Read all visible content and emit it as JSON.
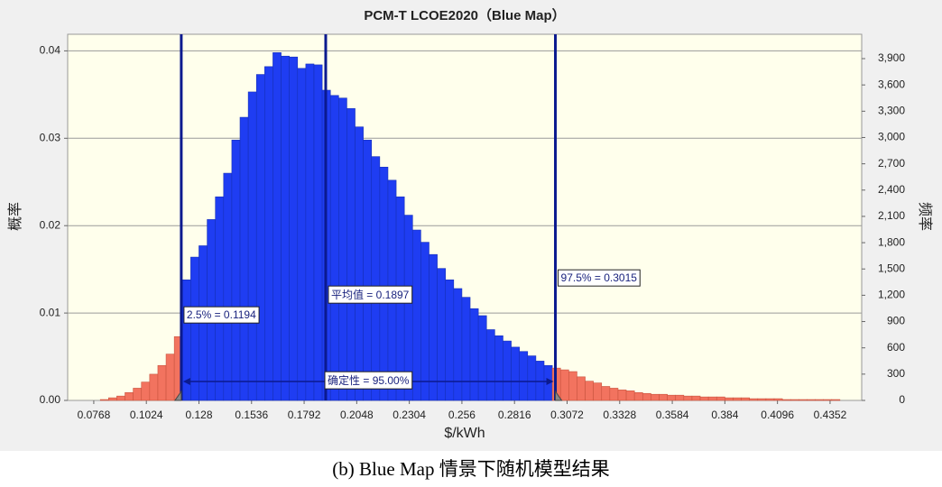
{
  "chart_data": {
    "type": "histogram",
    "title": "PCM-T LCOE2020（Blue Map）",
    "xlabel": "$/kWh",
    "ylabel": "概率",
    "y2label": "频率",
    "bins": [
      0.08,
      0.084,
      0.088,
      0.092,
      0.096,
      0.1,
      0.104,
      0.108,
      0.112,
      0.116,
      0.12,
      0.124,
      0.128,
      0.132,
      0.136,
      0.14,
      0.144,
      0.148,
      0.152,
      0.156,
      0.16,
      0.164,
      0.168,
      0.172,
      0.176,
      0.18,
      0.184,
      0.188,
      0.192,
      0.196,
      0.2,
      0.204,
      0.208,
      0.212,
      0.216,
      0.22,
      0.224,
      0.228,
      0.232,
      0.236,
      0.24,
      0.244,
      0.248,
      0.252,
      0.256,
      0.26,
      0.264,
      0.268,
      0.272,
      0.276,
      0.28,
      0.284,
      0.288,
      0.292,
      0.296,
      0.3,
      0.304,
      0.308,
      0.312,
      0.316,
      0.32,
      0.324,
      0.328,
      0.332,
      0.336,
      0.34,
      0.344,
      0.348,
      0.352,
      0.356,
      0.36,
      0.364,
      0.368,
      0.372,
      0.376,
      0.38,
      0.384,
      0.388,
      0.392,
      0.396,
      0.4,
      0.404,
      0.408,
      0.412,
      0.416,
      0.42,
      0.424,
      0.428,
      0.432,
      0.436,
      0.44
    ],
    "values": [
      0.0001,
      0.0003,
      0.0005,
      0.0009,
      0.0014,
      0.0021,
      0.003,
      0.004,
      0.0053,
      0.0073,
      0.0138,
      0.0164,
      0.0177,
      0.0207,
      0.0233,
      0.026,
      0.0298,
      0.0324,
      0.0353,
      0.0373,
      0.0382,
      0.0398,
      0.0394,
      0.0393,
      0.038,
      0.0385,
      0.0384,
      0.0355,
      0.0349,
      0.0346,
      0.0334,
      0.0313,
      0.0298,
      0.0279,
      0.0267,
      0.0252,
      0.0233,
      0.0212,
      0.0195,
      0.0181,
      0.0167,
      0.0151,
      0.0138,
      0.0128,
      0.0118,
      0.0105,
      0.0097,
      0.0081,
      0.0074,
      0.0068,
      0.0061,
      0.0056,
      0.0051,
      0.0045,
      0.004,
      0.0037,
      0.0035,
      0.0033,
      0.0027,
      0.0022,
      0.002,
      0.0016,
      0.0014,
      0.0012,
      0.0011,
      0.0009,
      0.0008,
      0.0007,
      0.0007,
      0.0006,
      0.0006,
      0.0005,
      0.0005,
      0.0004,
      0.0004,
      0.0004,
      0.0003,
      0.0003,
      0.0003,
      0.0002,
      0.0002,
      0.0002,
      0.0002,
      0.0001,
      0.0001,
      0.0001,
      0.0001,
      0.0001,
      0.0001,
      0.0001
    ],
    "color": "#1f3df2",
    "tail_color": "#f2735f",
    "line_color": "#0b1a8f",
    "xlim": [
      0.0641,
      0.4506
    ],
    "ylim": [
      0,
      0.0419
    ],
    "y2lim": [
      0,
      4178
    ],
    "xticks": [
      0.0768,
      0.1024,
      0.128,
      0.1536,
      0.1792,
      0.2048,
      0.2304,
      0.256,
      0.2816,
      0.3072,
      0.3328,
      0.3584,
      0.384,
      0.4096,
      0.4352
    ],
    "yticks": [
      {
        "value": 0,
        "label": "0.00"
      },
      0.01,
      0.02,
      0.03,
      0.04
    ],
    "y2ticks": [
      0,
      300,
      600,
      900,
      {
        "value": 1200,
        "label": "1,200"
      },
      {
        "value": 1500,
        "label": "1,500"
      },
      {
        "value": 1800,
        "label": "1,800"
      },
      {
        "value": 2100,
        "label": "2,100"
      },
      {
        "value": 2400,
        "label": "2,400"
      },
      {
        "value": 2700,
        "label": "2,700"
      },
      {
        "value": 3000,
        "label": "3,000"
      },
      {
        "value": 3300,
        "label": "3,300"
      },
      {
        "value": 3600,
        "label": "3,600"
      },
      {
        "value": 3900,
        "label": "3,900"
      }
    ],
    "grid": true,
    "markers": {
      "lower": {
        "value": 0.1194,
        "label": "2.5% = 0.1194"
      },
      "mean": {
        "value": 0.1897,
        "label": "平均值 = 0.1897"
      },
      "upper": {
        "value": 0.3015,
        "label": "97.5% = 0.3015"
      }
    },
    "certainty_label": "确定性 = 95.00%"
  },
  "caption": "(b) Blue Map 情景下随机模型结果"
}
